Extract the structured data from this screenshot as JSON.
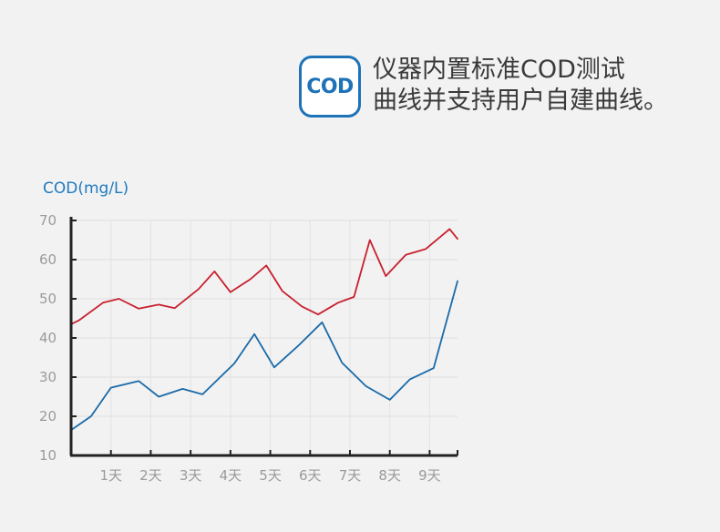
{
  "badge": {
    "label": "COD"
  },
  "headline": {
    "line1": "仪器内置标准COD测试",
    "line2": "曲线并支持用户自建曲线。"
  },
  "colors": {
    "background": "#f2f2f2",
    "accent_blue": "#1e73b8",
    "series_red": "#c8202e",
    "series_blue": "#1a6aa8",
    "axis": "#222222"
  },
  "chart_data": {
    "type": "line",
    "ylabel": "COD(mg/L)",
    "xlabel": "",
    "ylim": [
      10,
      70
    ],
    "xlim": [
      0,
      9.7
    ],
    "grid": true,
    "yticks": [
      10,
      20,
      30,
      40,
      50,
      60,
      70
    ],
    "xticks": [
      {
        "x": 1,
        "label": "1天"
      },
      {
        "x": 2,
        "label": "2天"
      },
      {
        "x": 3,
        "label": "3天"
      },
      {
        "x": 4,
        "label": "4天"
      },
      {
        "x": 5,
        "label": "5天"
      },
      {
        "x": 6,
        "label": "6天"
      },
      {
        "x": 7,
        "label": "7天"
      },
      {
        "x": 8,
        "label": "8天"
      },
      {
        "x": 9,
        "label": "9天"
      }
    ],
    "series": [
      {
        "color": "#c8202e",
        "points": [
          [
            0,
            43.5
          ],
          [
            0.2,
            44.5
          ],
          [
            0.8,
            49
          ],
          [
            1.2,
            50
          ],
          [
            1.7,
            47.5
          ],
          [
            2.2,
            48.5
          ],
          [
            2.6,
            47.6
          ],
          [
            3.2,
            52.5
          ],
          [
            3.6,
            57
          ],
          [
            4.0,
            51.7
          ],
          [
            4.5,
            55
          ],
          [
            4.9,
            58.5
          ],
          [
            5.3,
            52
          ],
          [
            5.8,
            48
          ],
          [
            6.2,
            46
          ],
          [
            6.7,
            49
          ],
          [
            7.1,
            50.5
          ],
          [
            7.5,
            65
          ],
          [
            7.9,
            55.8
          ],
          [
            8.4,
            61.2
          ],
          [
            8.9,
            62.7
          ],
          [
            9.5,
            67.8
          ],
          [
            9.7,
            65.3
          ]
        ]
      },
      {
        "color": "#1a6aa8",
        "points": [
          [
            0,
            16.5
          ],
          [
            0.5,
            20
          ],
          [
            1.0,
            27.3
          ],
          [
            1.7,
            29
          ],
          [
            2.2,
            25
          ],
          [
            2.8,
            27
          ],
          [
            3.3,
            25.6
          ],
          [
            4.1,
            33.5
          ],
          [
            4.6,
            41
          ],
          [
            5.1,
            32.5
          ],
          [
            5.7,
            38
          ],
          [
            6.3,
            44
          ],
          [
            6.8,
            33.7
          ],
          [
            7.4,
            27.7
          ],
          [
            8.0,
            24.2
          ],
          [
            8.5,
            29.4
          ],
          [
            9.1,
            32.3
          ],
          [
            9.7,
            54.5
          ]
        ]
      }
    ]
  }
}
